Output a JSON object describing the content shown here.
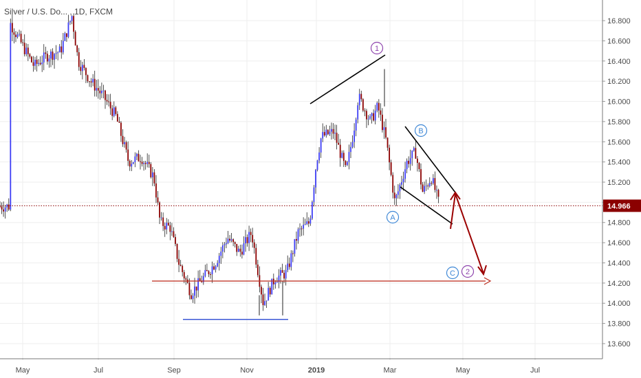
{
  "title": "Silver / U.S. Do... , 1D, FXCM",
  "colors": {
    "bg": "#ffffff",
    "grid": "#eeeeee",
    "bull_candle": "#3d3df5",
    "bear_candle": "#8b0000",
    "wick": "#222222",
    "price_line": "#8b0000",
    "price_tag_bg": "#8b0000",
    "trend_line": "#000000",
    "support_line": "#3b57d6",
    "target_line": "#c0392b",
    "forecast_arrow": "#9b0000",
    "wave_label_purple": "#8e44ad",
    "wave_label_blue": "#3f88d6"
  },
  "chart_data": {
    "type": "candlestick",
    "x_axis": {
      "tick_labels": [
        "May",
        "Jul",
        "Sep",
        "Nov",
        "2019",
        "Mar",
        "May",
        "Jul"
      ],
      "bold_labels": [
        "2019"
      ]
    },
    "y_axis": {
      "tick_labels": [
        "16.800",
        "16.600",
        "16.400",
        "16.200",
        "16.000",
        "15.800",
        "15.600",
        "15.400",
        "15.200",
        "15.000",
        "14.800",
        "14.600",
        "14.400",
        "14.200",
        "14.000",
        "13.800",
        "13.600"
      ],
      "range": [
        13.45,
        16.95
      ],
      "position": "right"
    },
    "price_path": [
      {
        "x": "Apr 20",
        "y": 16.8
      },
      {
        "x": "May 1",
        "y": 16.55
      },
      {
        "x": "May 10",
        "y": 16.35
      },
      {
        "x": "May 20",
        "y": 16.45
      },
      {
        "x": "Jun 1",
        "y": 16.5
      },
      {
        "x": "Jun 10",
        "y": 16.85
      },
      {
        "x": "Jun 15",
        "y": 16.4
      },
      {
        "x": "Jun 25",
        "y": 16.2
      },
      {
        "x": "Jul 5",
        "y": 16.05
      },
      {
        "x": "Jul 15",
        "y": 15.85
      },
      {
        "x": "Jul 25",
        "y": 15.4
      },
      {
        "x": "Aug 5",
        "y": 15.45
      },
      {
        "x": "Aug 15",
        "y": 15.25
      },
      {
        "x": "Aug 20",
        "y": 14.8
      },
      {
        "x": "Aug 28",
        "y": 14.75
      },
      {
        "x": "Sep 5",
        "y": 14.4
      },
      {
        "x": "Sep 15",
        "y": 14.1
      },
      {
        "x": "Sep 25",
        "y": 14.25
      },
      {
        "x": "Oct 5",
        "y": 14.4
      },
      {
        "x": "Oct 15",
        "y": 14.65
      },
      {
        "x": "Oct 25",
        "y": 14.5
      },
      {
        "x": "Nov 5",
        "y": 14.7
      },
      {
        "x": "Nov 15",
        "y": 14.0
      },
      {
        "x": "Nov 25",
        "y": 14.25
      },
      {
        "x": "Dec 5",
        "y": 14.3
      },
      {
        "x": "Dec 15",
        "y": 14.7
      },
      {
        "x": "Dec 25",
        "y": 14.8
      },
      {
        "x": "Jan 1",
        "y": 15.4
      },
      {
        "x": "Jan 5",
        "y": 15.65
      },
      {
        "x": "Jan 15",
        "y": 15.7
      },
      {
        "x": "Jan 25",
        "y": 15.3
      },
      {
        "x": "Feb 1",
        "y": 15.7
      },
      {
        "x": "Feb 5",
        "y": 16.05
      },
      {
        "x": "Feb 15",
        "y": 15.8
      },
      {
        "x": "Feb 21",
        "y": 15.95
      },
      {
        "x": "Feb 28",
        "y": 15.6
      },
      {
        "x": "Mar 5",
        "y": 15.0
      },
      {
        "x": "Mar 10",
        "y": 15.2
      },
      {
        "x": "Mar 15",
        "y": 15.4
      },
      {
        "x": "Mar 22",
        "y": 15.5
      },
      {
        "x": "Mar 28",
        "y": 15.1
      },
      {
        "x": "Apr 5",
        "y": 15.25
      },
      {
        "x": "Apr 12",
        "y": 14.96
      }
    ],
    "current_price": {
      "label": "14.966",
      "value": 14.966
    },
    "annotations": {
      "wave_labels": [
        "1",
        "2",
        "A",
        "B",
        "C"
      ],
      "support_level": 13.84,
      "target_level": 14.22
    }
  }
}
